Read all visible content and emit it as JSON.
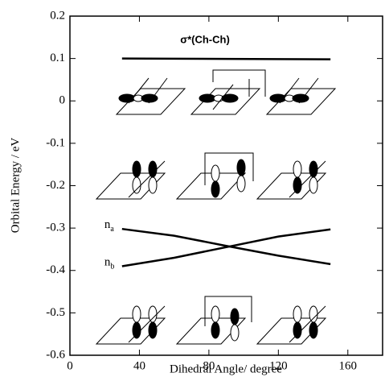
{
  "chart_data": {
    "type": "line",
    "x_label": "Dihedral Angle/ degree",
    "y_label": "Orbital Energy / eV",
    "annotation": "σ*(Ch-Ch)",
    "x": [
      30,
      60,
      90,
      120,
      150
    ],
    "series": [
      {
        "name": "σ*(Ch-Ch)",
        "color": "#000000",
        "values": [
          0.1,
          0.0995,
          0.099,
          0.0985,
          0.098
        ]
      },
      {
        "name": "n",
        "subscript": "a",
        "color": "#000000",
        "values": [
          -0.302,
          -0.318,
          -0.342,
          -0.365,
          -0.385
        ]
      },
      {
        "name": "n",
        "subscript": "b",
        "color": "#000000",
        "values": [
          -0.39,
          -0.37,
          -0.345,
          -0.32,
          -0.303
        ]
      }
    ],
    "xlim": [
      0,
      180
    ],
    "xticks": [
      0,
      40,
      80,
      120,
      160
    ],
    "ylim": [
      -0.6,
      0.2
    ],
    "yticks": [
      -0.6,
      -0.5,
      -0.4,
      -0.3,
      -0.2,
      -0.1,
      0,
      0.1,
      0.2
    ]
  }
}
